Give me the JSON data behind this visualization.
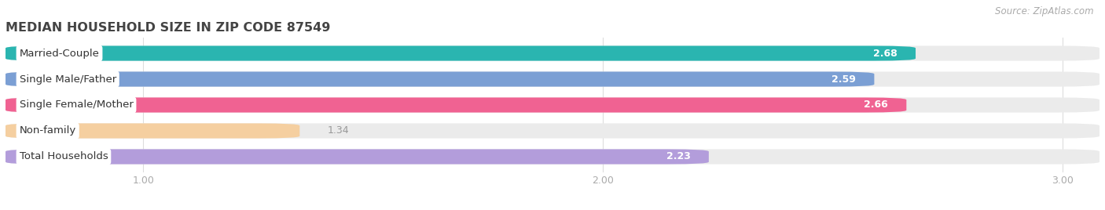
{
  "title": "MEDIAN HOUSEHOLD SIZE IN ZIP CODE 87549",
  "source": "Source: ZipAtlas.com",
  "categories": [
    "Married-Couple",
    "Single Male/Father",
    "Single Female/Mother",
    "Non-family",
    "Total Households"
  ],
  "values": [
    2.68,
    2.59,
    2.66,
    1.34,
    2.23
  ],
  "bar_colors": [
    "#2ab5b0",
    "#7b9fd4",
    "#f06292",
    "#f5cfa0",
    "#b39ddb"
  ],
  "value_text_colors": [
    "#ffffff",
    "#ffffff",
    "#ffffff",
    "#999999",
    "#ffffff"
  ],
  "background_color": "#ffffff",
  "bar_bg_color": "#ebebeb",
  "xlim_min": 0.7,
  "xlim_max": 3.08,
  "xticks": [
    1.0,
    2.0,
    3.0
  ],
  "bar_height": 0.58,
  "title_fontsize": 11.5,
  "label_fontsize": 9.5,
  "value_fontsize": 9,
  "tick_fontsize": 9,
  "source_fontsize": 8.5
}
